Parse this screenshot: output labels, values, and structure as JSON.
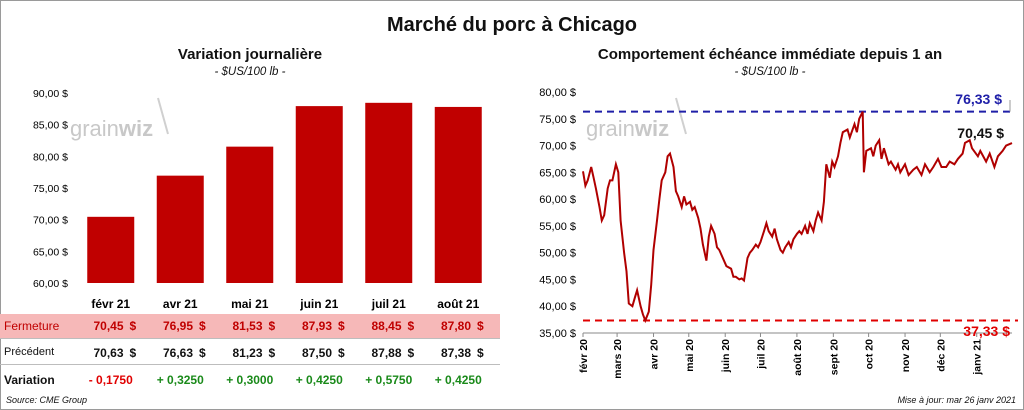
{
  "page": {
    "title": "Marché du porc à Chicago",
    "source": "Source: CME Group",
    "updated": "Mise à jour: mar 26 janv 2021",
    "watermark": "grainwiz"
  },
  "left_panel": {
    "title": "Variation journalière",
    "unit": "- $US/100 lb -",
    "rows": {
      "fermeture_label": "Fermeture",
      "precedent_label": "Précédent",
      "variation_label": "Variation",
      "currency": "$",
      "fermeture": [
        "70,45",
        "76,95",
        "81,53",
        "87,93",
        "88,45",
        "87,80"
      ],
      "precedent": [
        "70,63",
        "76,63",
        "81,23",
        "87,50",
        "87,88",
        "87,38"
      ],
      "variation": [
        "- 0,1750",
        "+ 0,3250",
        "+ 0,3000",
        "+ 0,4250",
        "+ 0,5750",
        "+ 0,4250"
      ]
    }
  },
  "right_panel": {
    "title": "Comportement  échéance immédiate depuis 1 an",
    "unit": "- $US/100 lb -",
    "max_label": "76,33 $",
    "min_label": "37,33 $",
    "last_label": "70,45 $"
  },
  "colors": {
    "bar": "#c00000",
    "line": "#b00000",
    "max_line": "#1f1fa8",
    "min_line": "#e00000",
    "fermeture_bg": "#f6b8b8",
    "neg": "#e00000",
    "pos": "#1a8a1a"
  },
  "chart_data": [
    {
      "type": "bar",
      "title": "Variation journalière",
      "categories": [
        "févr 21",
        "avr 21",
        "mai 21",
        "juin 21",
        "juil 21",
        "août 21"
      ],
      "values": [
        70.45,
        76.95,
        81.53,
        87.93,
        88.45,
        87.8
      ],
      "ylim": [
        60,
        90
      ],
      "yticks": [
        "60,00 $",
        "65,00 $",
        "70,00 $",
        "75,00 $",
        "80,00 $",
        "85,00 $",
        "90,00 $"
      ],
      "ytick_values": [
        60,
        65,
        70,
        75,
        80,
        85,
        90
      ],
      "grid": false,
      "legend": "none"
    },
    {
      "type": "line",
      "title": "Comportement  échéance immédiate depuis 1 an",
      "ylim": [
        35,
        80
      ],
      "yticks": [
        "35,00 $",
        "40,00 $",
        "45,00 $",
        "50,00 $",
        "55,00 $",
        "60,00 $",
        "65,00 $",
        "70,00 $",
        "75,00 $",
        "80,00 $"
      ],
      "ytick_values": [
        35,
        40,
        45,
        50,
        55,
        60,
        65,
        70,
        75,
        80
      ],
      "xticks": [
        "févr 20",
        "mars 20",
        "avr 20",
        "mai 20",
        "juin 20",
        "juil 20",
        "août 20",
        "sept 20",
        "oct 20",
        "nov 20",
        "déc 20",
        "janv 21"
      ],
      "xtick_days": [
        0,
        29,
        60,
        90,
        121,
        151,
        182,
        213,
        243,
        274,
        304,
        335
      ],
      "x_start": "2020-01-27",
      "x_end": "2021-01-26",
      "reference_lines": [
        {
          "label": "76,33 $",
          "value": 76.33
        },
        {
          "label": "37,33 $",
          "value": 37.33
        }
      ],
      "last_value": 70.45,
      "series": [
        {
          "values": [
            [
              "2020-01-27",
              65.2
            ],
            [
              "2020-01-29",
              62.5
            ],
            [
              "2020-01-31",
              63.5
            ],
            [
              "2020-02-03",
              66.0
            ],
            [
              "2020-02-05",
              64.0
            ],
            [
              "2020-02-07",
              62.0
            ],
            [
              "2020-02-10",
              58.5
            ],
            [
              "2020-02-12",
              56.0
            ],
            [
              "2020-02-14",
              57.0
            ],
            [
              "2020-02-17",
              62.0
            ],
            [
              "2020-02-19",
              63.5
            ],
            [
              "2020-02-21",
              63.5
            ],
            [
              "2020-02-24",
              66.5
            ],
            [
              "2020-02-26",
              65.0
            ],
            [
              "2020-02-28",
              56.0
            ],
            [
              "2020-03-02",
              50.0
            ],
            [
              "2020-03-04",
              46.5
            ],
            [
              "2020-03-06",
              40.5
            ],
            [
              "2020-03-09",
              40.0
            ],
            [
              "2020-03-11",
              41.5
            ],
            [
              "2020-03-13",
              43.0
            ],
            [
              "2020-03-16",
              40.0
            ],
            [
              "2020-03-18",
              38.5
            ],
            [
              "2020-03-20",
              37.33
            ],
            [
              "2020-03-23",
              39.0
            ],
            [
              "2020-03-25",
              44.0
            ],
            [
              "2020-03-27",
              50.5
            ],
            [
              "2020-03-30",
              56.0
            ],
            [
              "2020-04-01",
              60.0
            ],
            [
              "2020-04-03",
              63.5
            ],
            [
              "2020-04-06",
              65.0
            ],
            [
              "2020-04-08",
              68.0
            ],
            [
              "2020-04-10",
              68.5
            ],
            [
              "2020-04-13",
              66.0
            ],
            [
              "2020-04-15",
              61.5
            ],
            [
              "2020-04-17",
              60.5
            ],
            [
              "2020-04-20",
              58.5
            ],
            [
              "2020-04-22",
              60.5
            ],
            [
              "2020-04-24",
              59.0
            ],
            [
              "2020-04-27",
              59.5
            ],
            [
              "2020-04-29",
              58.0
            ],
            [
              "2020-05-01",
              58.5
            ],
            [
              "2020-05-04",
              56.5
            ],
            [
              "2020-05-06",
              54.5
            ],
            [
              "2020-05-08",
              51.5
            ],
            [
              "2020-05-11",
              48.5
            ],
            [
              "2020-05-13",
              53.0
            ],
            [
              "2020-05-15",
              55.0
            ],
            [
              "2020-05-18",
              53.5
            ],
            [
              "2020-05-20",
              51.0
            ],
            [
              "2020-05-22",
              50.5
            ],
            [
              "2020-05-26",
              48.5
            ],
            [
              "2020-05-28",
              47.5
            ],
            [
              "2020-06-01",
              47.0
            ],
            [
              "2020-06-03",
              45.5
            ],
            [
              "2020-06-05",
              45.5
            ],
            [
              "2020-06-08",
              45.0
            ],
            [
              "2020-06-10",
              45.2
            ],
            [
              "2020-06-12",
              44.8
            ],
            [
              "2020-06-15",
              49.0
            ],
            [
              "2020-06-17",
              50.0
            ],
            [
              "2020-06-19",
              50.5
            ],
            [
              "2020-06-22",
              51.5
            ],
            [
              "2020-06-24",
              51.0
            ],
            [
              "2020-06-26",
              52.0
            ],
            [
              "2020-06-29",
              54.0
            ],
            [
              "2020-07-01",
              55.5
            ],
            [
              "2020-07-03",
              54.0
            ],
            [
              "2020-07-06",
              53.0
            ],
            [
              "2020-07-08",
              54.5
            ],
            [
              "2020-07-10",
              52.5
            ],
            [
              "2020-07-13",
              50.5
            ],
            [
              "2020-07-15",
              50.0
            ],
            [
              "2020-07-17",
              51.0
            ],
            [
              "2020-07-20",
              52.0
            ],
            [
              "2020-07-22",
              51.0
            ],
            [
              "2020-07-24",
              52.5
            ],
            [
              "2020-07-27",
              53.5
            ],
            [
              "2020-07-29",
              54.0
            ],
            [
              "2020-07-31",
              53.5
            ],
            [
              "2020-08-03",
              55.0
            ],
            [
              "2020-08-05",
              53.5
            ],
            [
              "2020-08-07",
              55.5
            ],
            [
              "2020-08-10",
              54.0
            ],
            [
              "2020-08-12",
              56.0
            ],
            [
              "2020-08-14",
              57.5
            ],
            [
              "2020-08-17",
              56.0
            ],
            [
              "2020-08-19",
              59.5
            ],
            [
              "2020-08-21",
              66.5
            ],
            [
              "2020-08-24",
              64.0
            ],
            [
              "2020-08-26",
              67.0
            ],
            [
              "2020-08-28",
              66.0
            ],
            [
              "2020-08-31",
              68.0
            ],
            [
              "2020-09-02",
              70.5
            ],
            [
              "2020-09-04",
              72.5
            ],
            [
              "2020-09-08",
              73.0
            ],
            [
              "2020-09-10",
              71.5
            ],
            [
              "2020-09-14",
              74.0
            ],
            [
              "2020-09-16",
              72.5
            ],
            [
              "2020-09-18",
              75.0
            ],
            [
              "2020-09-21",
              76.33
            ],
            [
              "2020-09-22",
              65.0
            ],
            [
              "2020-09-24",
              69.0
            ],
            [
              "2020-09-28",
              69.5
            ],
            [
              "2020-09-30",
              68.0
            ],
            [
              "2020-10-02",
              70.0
            ],
            [
              "2020-10-05",
              71.0
            ],
            [
              "2020-10-07",
              67.5
            ],
            [
              "2020-10-09",
              69.5
            ],
            [
              "2020-10-13",
              66.5
            ],
            [
              "2020-10-15",
              67.0
            ],
            [
              "2020-10-19",
              65.5
            ],
            [
              "2020-10-21",
              66.5
            ],
            [
              "2020-10-23",
              65.0
            ],
            [
              "2020-10-27",
              66.5
            ],
            [
              "2020-10-30",
              64.5
            ],
            [
              "2020-11-03",
              65.5
            ],
            [
              "2020-11-06",
              66.0
            ],
            [
              "2020-11-10",
              64.5
            ],
            [
              "2020-11-13",
              66.5
            ],
            [
              "2020-11-17",
              65.0
            ],
            [
              "2020-11-20",
              66.0
            ],
            [
              "2020-11-24",
              67.5
            ],
            [
              "2020-11-27",
              66.0
            ],
            [
              "2020-12-01",
              66.0
            ],
            [
              "2020-12-04",
              67.0
            ],
            [
              "2020-12-08",
              66.5
            ],
            [
              "2020-12-11",
              67.5
            ],
            [
              "2020-12-15",
              68.5
            ],
            [
              "2020-12-17",
              70.5
            ],
            [
              "2020-12-21",
              71.0
            ],
            [
              "2020-12-23",
              69.5
            ],
            [
              "2020-12-28",
              68.0
            ],
            [
              "2020-12-30",
              69.0
            ],
            [
              "2021-01-04",
              67.0
            ],
            [
              "2021-01-07",
              68.5
            ],
            [
              "2021-01-11",
              66.0
            ],
            [
              "2021-01-14",
              68.0
            ],
            [
              "2021-01-18",
              69.0
            ],
            [
              "2021-01-21",
              70.0
            ],
            [
              "2021-01-26",
              70.45
            ]
          ]
        }
      ]
    }
  ]
}
